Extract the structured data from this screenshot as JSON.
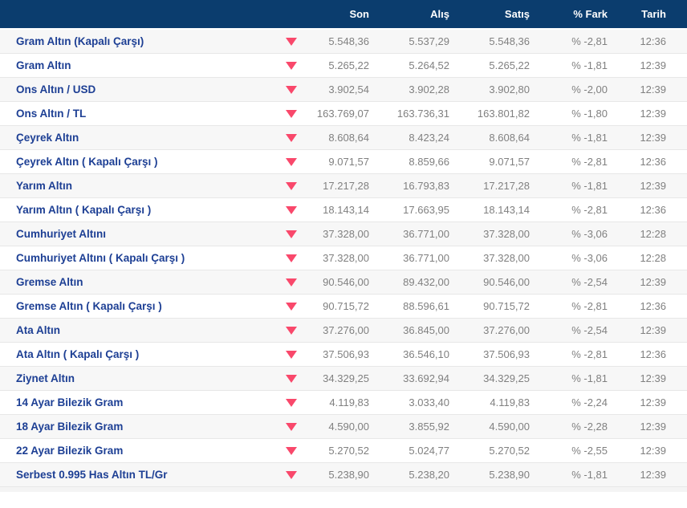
{
  "header": {
    "columns": [
      "Son",
      "Alış",
      "Satış",
      "% Fark",
      "Tarih"
    ]
  },
  "colors": {
    "header_bg": "#0b3d6e",
    "header_text": "#ffffff",
    "name_text": "#1d3f94",
    "value_text": "#808080",
    "down_arrow": "#f9486b",
    "zebra_row": "#f7f7f7",
    "row_border": "#e7e7e7"
  },
  "rows": [
    {
      "name": "Gram Altın (Kapalı Çarşı)",
      "direction": "down",
      "son": "5.548,36",
      "alis": "5.537,29",
      "satis": "5.548,36",
      "fark": "% -2,81",
      "tarih": "12:36"
    },
    {
      "name": "Gram Altın",
      "direction": "down",
      "son": "5.265,22",
      "alis": "5.264,52",
      "satis": "5.265,22",
      "fark": "% -1,81",
      "tarih": "12:39"
    },
    {
      "name": "Ons Altın / USD",
      "direction": "down",
      "son": "3.902,54",
      "alis": "3.902,28",
      "satis": "3.902,80",
      "fark": "% -2,00",
      "tarih": "12:39"
    },
    {
      "name": "Ons Altın / TL",
      "direction": "down",
      "son": "163.769,07",
      "alis": "163.736,31",
      "satis": "163.801,82",
      "fark": "% -1,80",
      "tarih": "12:39"
    },
    {
      "name": "Çeyrek Altın",
      "direction": "down",
      "son": "8.608,64",
      "alis": "8.423,24",
      "satis": "8.608,64",
      "fark": "% -1,81",
      "tarih": "12:39"
    },
    {
      "name": "Çeyrek Altın ( Kapalı Çarşı )",
      "direction": "down",
      "son": "9.071,57",
      "alis": "8.859,66",
      "satis": "9.071,57",
      "fark": "% -2,81",
      "tarih": "12:36"
    },
    {
      "name": "Yarım Altın",
      "direction": "down",
      "son": "17.217,28",
      "alis": "16.793,83",
      "satis": "17.217,28",
      "fark": "% -1,81",
      "tarih": "12:39"
    },
    {
      "name": "Yarım Altın ( Kapalı Çarşı )",
      "direction": "down",
      "son": "18.143,14",
      "alis": "17.663,95",
      "satis": "18.143,14",
      "fark": "% -2,81",
      "tarih": "12:36"
    },
    {
      "name": "Cumhuriyet Altını",
      "direction": "down",
      "son": "37.328,00",
      "alis": "36.771,00",
      "satis": "37.328,00",
      "fark": "% -3,06",
      "tarih": "12:28"
    },
    {
      "name": "Cumhuriyet Altını ( Kapalı Çarşı )",
      "direction": "down",
      "son": "37.328,00",
      "alis": "36.771,00",
      "satis": "37.328,00",
      "fark": "% -3,06",
      "tarih": "12:28"
    },
    {
      "name": "Gremse Altın",
      "direction": "down",
      "son": "90.546,00",
      "alis": "89.432,00",
      "satis": "90.546,00",
      "fark": "% -2,54",
      "tarih": "12:39"
    },
    {
      "name": "Gremse Altın ( Kapalı Çarşı )",
      "direction": "down",
      "son": "90.715,72",
      "alis": "88.596,61",
      "satis": "90.715,72",
      "fark": "% -2,81",
      "tarih": "12:36"
    },
    {
      "name": "Ata Altın",
      "direction": "down",
      "son": "37.276,00",
      "alis": "36.845,00",
      "satis": "37.276,00",
      "fark": "% -2,54",
      "tarih": "12:39"
    },
    {
      "name": "Ata Altın ( Kapalı Çarşı )",
      "direction": "down",
      "son": "37.506,93",
      "alis": "36.546,10",
      "satis": "37.506,93",
      "fark": "% -2,81",
      "tarih": "12:36"
    },
    {
      "name": "Ziynet Altın",
      "direction": "down",
      "son": "34.329,25",
      "alis": "33.692,94",
      "satis": "34.329,25",
      "fark": "% -1,81",
      "tarih": "12:39"
    },
    {
      "name": "14 Ayar Bilezik Gram",
      "direction": "down",
      "son": "4.119,83",
      "alis": "3.033,40",
      "satis": "4.119,83",
      "fark": "% -2,24",
      "tarih": "12:39"
    },
    {
      "name": "18 Ayar Bilezik Gram",
      "direction": "down",
      "son": "4.590,00",
      "alis": "3.855,92",
      "satis": "4.590,00",
      "fark": "% -2,28",
      "tarih": "12:39"
    },
    {
      "name": "22 Ayar Bilezik Gram",
      "direction": "down",
      "son": "5.270,52",
      "alis": "5.024,77",
      "satis": "5.270,52",
      "fark": "% -2,55",
      "tarih": "12:39"
    },
    {
      "name": "Serbest 0.995 Has Altın TL/Gr",
      "direction": "down",
      "son": "5.238,90",
      "alis": "5.238,20",
      "satis": "5.238,90",
      "fark": "% -1,81",
      "tarih": "12:39"
    }
  ]
}
